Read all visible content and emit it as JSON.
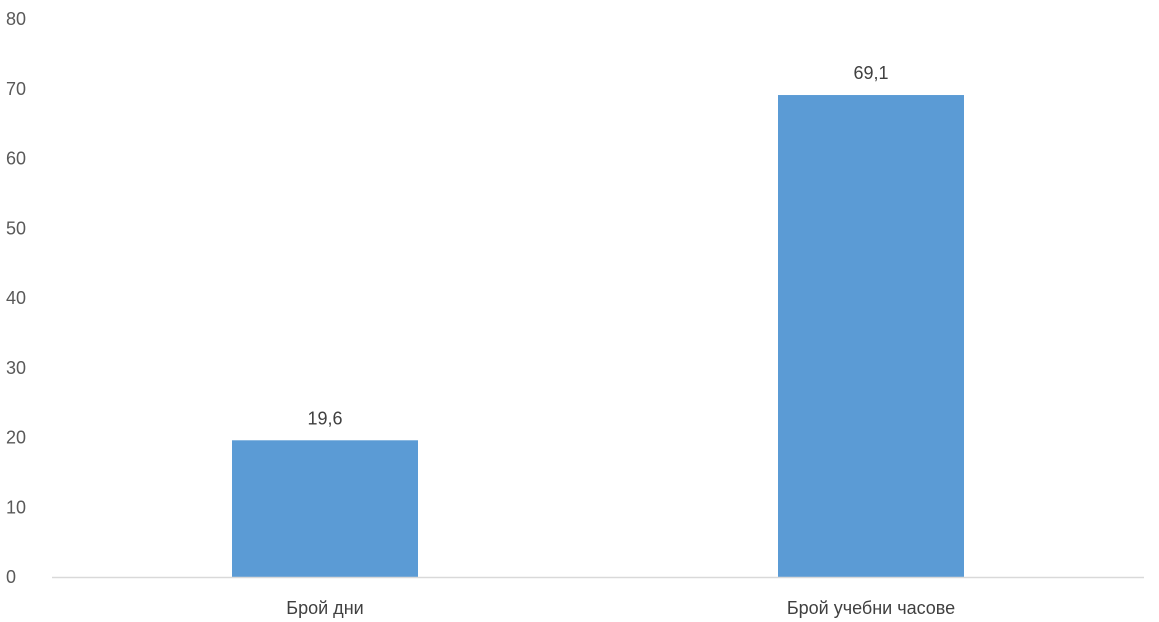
{
  "chart_data": {
    "type": "bar",
    "categories": [
      "Брой дни",
      "Брой учебни часове"
    ],
    "values": [
      19.6,
      69.1
    ],
    "value_labels": [
      "19,6",
      "69,1"
    ],
    "y_ticks": [
      "0",
      "10",
      "20",
      "30",
      "40",
      "50",
      "60",
      "70",
      "80"
    ],
    "ylim": [
      0,
      80
    ],
    "grid": false,
    "legend": "none",
    "title": "",
    "xlabel": "",
    "ylabel": "",
    "colors": {
      "bar": "#5b9bd5",
      "axis": "#d9d9d9",
      "tick_text": "#595959",
      "label_text": "#404040"
    }
  }
}
